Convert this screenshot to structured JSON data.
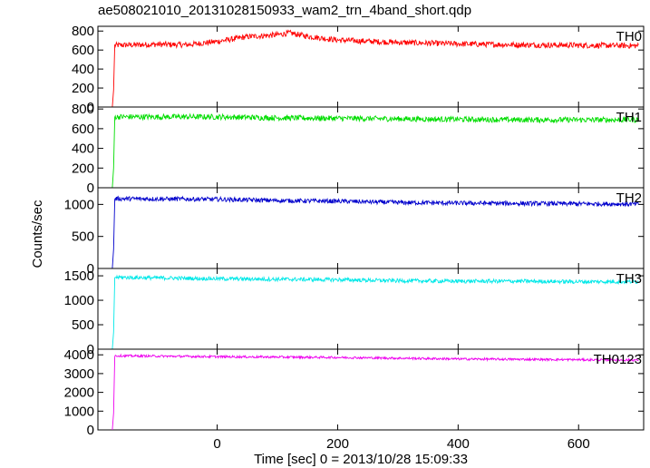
{
  "title": "ae508021010_20131028150933_wam2_trn_4band_short.qdp",
  "ylabel": "Counts/sec",
  "xlabel": "Time [sec] 0 = 2013/10/28 15:09:33",
  "chart_data": {
    "type": "line",
    "title": "ae508021010_20131028150933_wam2_trn_4band_short.qdp",
    "xlabel": "Time [sec] 0 = 2013/10/28 15:09:33",
    "ylabel": "Counts/sec",
    "xlim": [
      -198,
      708
    ],
    "x_ticks": [
      0,
      200,
      400,
      600
    ],
    "grid": false,
    "onset_time": -170,
    "panels": [
      {
        "name": "TH0",
        "color": "#ff0000",
        "ylim": [
          0,
          850
        ],
        "y_ticks": [
          0,
          200,
          400,
          600,
          800
        ],
        "points": [
          [
            -174,
            0
          ],
          [
            -172,
            180
          ],
          [
            -170,
            650
          ],
          [
            -100,
            660
          ],
          [
            -50,
            655
          ],
          [
            0,
            690
          ],
          [
            50,
            740
          ],
          [
            100,
            760
          ],
          [
            120,
            780
          ],
          [
            150,
            745
          ],
          [
            200,
            705
          ],
          [
            300,
            680
          ],
          [
            400,
            665
          ],
          [
            500,
            655
          ],
          [
            600,
            650
          ],
          [
            700,
            645
          ]
        ],
        "noise": 30
      },
      {
        "name": "TH1",
        "color": "#00dd00",
        "ylim": [
          0,
          820
        ],
        "y_ticks": [
          0,
          200,
          400,
          600,
          800
        ],
        "points": [
          [
            -174,
            0
          ],
          [
            -172,
            200
          ],
          [
            -170,
            720
          ],
          [
            0,
            720
          ],
          [
            100,
            710
          ],
          [
            200,
            705
          ],
          [
            300,
            700
          ],
          [
            400,
            695
          ],
          [
            500,
            690
          ],
          [
            600,
            690
          ],
          [
            700,
            690
          ]
        ],
        "noise": 28
      },
      {
        "name": "TH2",
        "color": "#0000cc",
        "ylim": [
          0,
          1260
        ],
        "y_ticks": [
          0,
          500,
          1000
        ],
        "points": [
          [
            -174,
            0
          ],
          [
            -172,
            300
          ],
          [
            -170,
            1090
          ],
          [
            0,
            1080
          ],
          [
            100,
            1060
          ],
          [
            200,
            1050
          ],
          [
            300,
            1030
          ],
          [
            400,
            1020
          ],
          [
            500,
            1015
          ],
          [
            600,
            1010
          ],
          [
            700,
            1005
          ]
        ],
        "noise": 35
      },
      {
        "name": "TH3",
        "color": "#00e8e8",
        "ylim": [
          0,
          1650
        ],
        "y_ticks": [
          0,
          500,
          1000,
          1500
        ],
        "points": [
          [
            -174,
            0
          ],
          [
            -172,
            350
          ],
          [
            -170,
            1470
          ],
          [
            0,
            1440
          ],
          [
            100,
            1430
          ],
          [
            200,
            1420
          ],
          [
            300,
            1400
          ],
          [
            400,
            1390
          ],
          [
            500,
            1390
          ],
          [
            600,
            1380
          ],
          [
            700,
            1380
          ]
        ],
        "noise": 40
      },
      {
        "name": "TH0123",
        "color": "#ee00ee",
        "ylim": [
          0,
          4300
        ],
        "y_ticks": [
          0,
          1000,
          2000,
          3000,
          4000
        ],
        "points": [
          [
            -174,
            0
          ],
          [
            -172,
            900
          ],
          [
            -170,
            3950
          ],
          [
            0,
            3900
          ],
          [
            100,
            3880
          ],
          [
            200,
            3860
          ],
          [
            300,
            3820
          ],
          [
            400,
            3780
          ],
          [
            500,
            3760
          ],
          [
            600,
            3740
          ],
          [
            700,
            3720
          ]
        ],
        "noise": 60
      }
    ]
  }
}
